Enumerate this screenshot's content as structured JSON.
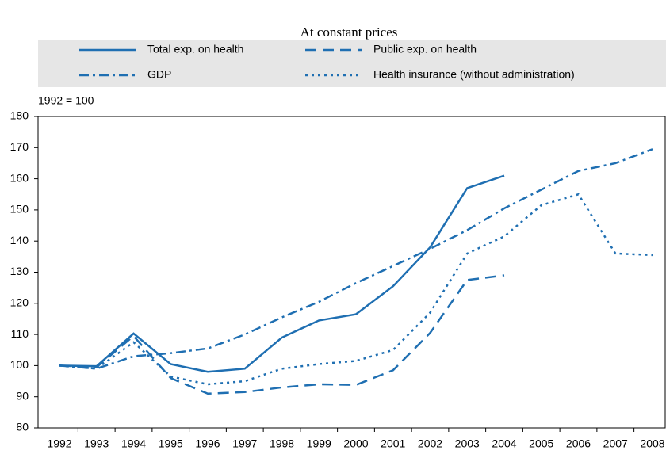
{
  "chart_data": {
    "type": "line",
    "title": "At constant prices",
    "y_label": "1992 = 100",
    "categories": [
      "1992",
      "1993",
      "1994",
      "1995",
      "1996",
      "1997",
      "1998",
      "1999",
      "2000",
      "2001",
      "2002",
      "2003",
      "2004",
      "2005",
      "2006",
      "2007",
      "2008"
    ],
    "series": [
      {
        "name": "Total exp. on health",
        "color": "#1f6fb2",
        "dash": "solid",
        "values": [
          100,
          99.8,
          110.3,
          100.5,
          98,
          99,
          109,
          114.5,
          116.5,
          125.5,
          138,
          157,
          161,
          null,
          null,
          null,
          null
        ]
      },
      {
        "name": "Public exp. on health",
        "color": "#1f6fb2",
        "dash": "dash",
        "values": [
          100,
          99.5,
          109.5,
          96,
          91,
          91.5,
          93,
          94,
          93.8,
          98.5,
          110.5,
          127.5,
          129,
          null,
          null,
          null,
          null
        ]
      },
      {
        "name": "GDP",
        "color": "#1f6fb2",
        "dash": "dashdot",
        "values": [
          100,
          99,
          103,
          104,
          105.5,
          110,
          115.5,
          120.5,
          126.5,
          132,
          137.5,
          143.5,
          150.5,
          156.5,
          162.5,
          165,
          169.5
        ]
      },
      {
        "name": "Health insurance (without administration)",
        "color": "#1f6fb2",
        "dash": "dot",
        "values": [
          100,
          99,
          107.5,
          96.5,
          94,
          95,
          99,
          100.5,
          101.5,
          105,
          117,
          136,
          141.5,
          151.5,
          155,
          136,
          135.5
        ]
      }
    ],
    "ylim": [
      80,
      180
    ],
    "yticks": [
      80,
      90,
      100,
      110,
      120,
      130,
      140,
      150,
      160,
      170,
      180
    ],
    "grid": false
  }
}
